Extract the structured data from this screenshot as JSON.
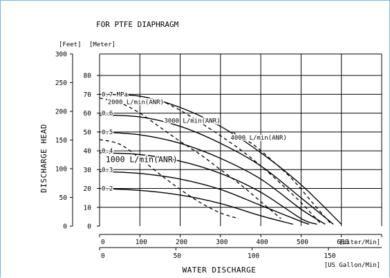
{
  "chart_data": {
    "type": "line",
    "title": "FOR PTFE DIAPHRAGM",
    "xlabel": "WATER DISCHARGE",
    "ylabel": "DISCHARGE HEAD",
    "x_unit_primary": "[Liter/Min]",
    "x_unit_secondary": "[US Gallon/Min]",
    "y_unit_left": "[Feet]",
    "y_unit_inner": "[Meter]",
    "xlim": [
      0,
      700
    ],
    "ylim": [
      0,
      91.44
    ],
    "x_ticks": [
      "0",
      "100",
      "200",
      "300",
      "400",
      "500",
      "600"
    ],
    "x_ticks_values": [
      0,
      100,
      200,
      300,
      400,
      500,
      600
    ],
    "x2_ticks": [
      "0",
      "50",
      "100",
      "150"
    ],
    "x2_ticks_values": [
      0,
      50,
      100,
      150
    ],
    "y_ticks_meter": [
      "0",
      "10",
      "20",
      "30",
      "40",
      "50",
      "60",
      "70",
      "80"
    ],
    "y_ticks_meter_values": [
      0,
      10,
      20,
      30,
      40,
      50,
      60,
      70,
      80
    ],
    "y_ticks_feet": [
      "0",
      "50",
      "100",
      "150",
      "200",
      "250",
      "300"
    ],
    "y_ticks_feet_values": [
      0,
      50,
      100,
      150,
      200,
      250,
      300
    ],
    "series": [
      {
        "name": "0.7 MPa",
        "style": "solid",
        "x": [
          0,
          100,
          200,
          300,
          400,
          500,
          600
        ],
        "y": [
          70,
          69,
          63,
          53,
          39,
          22,
          1
        ]
      },
      {
        "name": "0.6",
        "style": "solid",
        "x": [
          0,
          100,
          200,
          300,
          400,
          500,
          580
        ],
        "y": [
          59,
          58,
          53,
          44,
          32,
          15,
          1
        ]
      },
      {
        "name": "0.5",
        "style": "solid",
        "x": [
          0,
          100,
          200,
          300,
          400,
          500,
          560
        ],
        "y": [
          50,
          48.5,
          44,
          36,
          25,
          9,
          1
        ]
      },
      {
        "name": "0.4",
        "style": "solid",
        "x": [
          0,
          100,
          200,
          300,
          400,
          500,
          540
        ],
        "y": [
          39,
          38,
          34.5,
          28,
          18,
          4,
          1
        ]
      },
      {
        "name": "0.3",
        "style": "solid",
        "x": [
          0,
          100,
          200,
          300,
          400,
          500,
          520
        ],
        "y": [
          29,
          28,
          25,
          19.5,
          11,
          2.5,
          1
        ]
      },
      {
        "name": "0.2",
        "style": "solid",
        "x": [
          0,
          100,
          200,
          300,
          400,
          480
        ],
        "y": [
          20,
          19,
          16.5,
          12,
          5.5,
          1
        ]
      },
      {
        "name": "1000 L/min(ANR)",
        "style": "dashed",
        "x": [
          0,
          50,
          100,
          150,
          200,
          250,
          300,
          345
        ],
        "y": [
          46,
          43.5,
          36,
          27.5,
          19.5,
          12.5,
          7,
          4
        ]
      },
      {
        "name": "2000 L/min(ANR)",
        "style": "dashed",
        "x": [
          0,
          50,
          100,
          150,
          200,
          250,
          300,
          350,
          400,
          450
        ],
        "y": [
          68,
          65.5,
          60,
          52.5,
          45,
          38,
          30,
          22,
          13,
          4
        ]
      },
      {
        "name": "3000 L/min(ANR)",
        "style": "dashed",
        "x": [
          150,
          200,
          250,
          300,
          350,
          400,
          450,
          500,
          550
        ],
        "y": [
          67,
          61.5,
          55,
          48,
          40.5,
          32,
          22.5,
          12.5,
          1
        ]
      },
      {
        "name": "4000 L/min(ANR)",
        "style": "dashed",
        "x": [
          330,
          380,
          430,
          480,
          530,
          575
        ],
        "y": [
          50,
          43.5,
          34.5,
          24.5,
          12,
          1
        ]
      }
    ],
    "curve_labels": [
      {
        "text": "0.7 MPa",
        "x": 0,
        "y": 70
      },
      {
        "text": "0.6",
        "x": 0,
        "y": 60
      },
      {
        "text": "0.5",
        "x": 0,
        "y": 50
      },
      {
        "text": "0.4",
        "x": 0,
        "y": 40
      },
      {
        "text": "0.3",
        "x": 0,
        "y": 30
      },
      {
        "text": "0.2",
        "x": 0,
        "y": 20
      },
      {
        "text": "2000 L/min(ANR)",
        "x": 15,
        "y": 66,
        "size": "small"
      },
      {
        "text": "3000 L/min(ANR)",
        "x": 155,
        "y": 56,
        "size": "small"
      },
      {
        "text": "4000 L/min(ANR)",
        "x": 320,
        "y": 47,
        "size": "small"
      },
      {
        "text": "1000 L/min(ANR)",
        "x": 10,
        "y": 35,
        "size": "big"
      }
    ],
    "grid": true,
    "legend": "none"
  }
}
